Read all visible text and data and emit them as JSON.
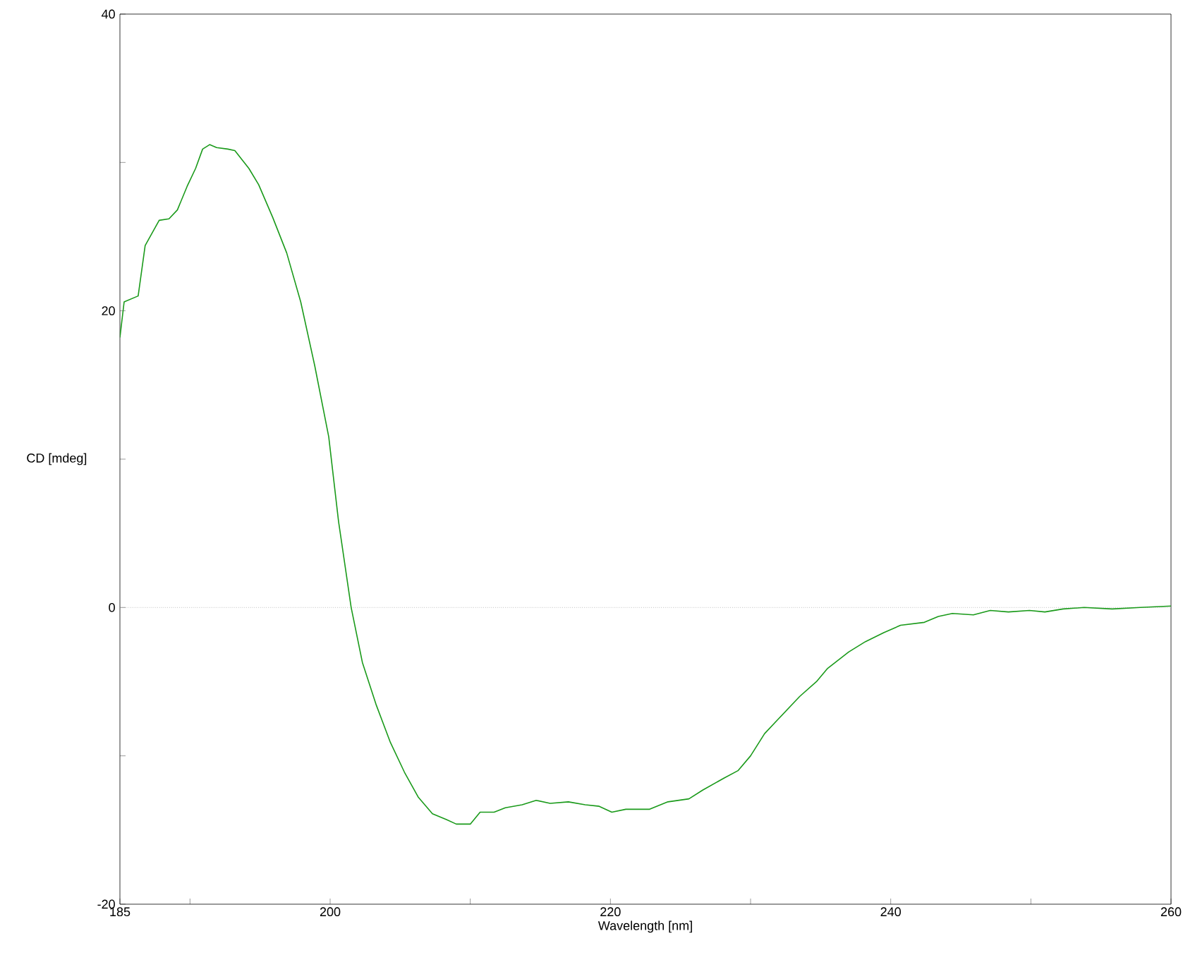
{
  "chart_data": {
    "type": "line",
    "xlabel": "Wavelength [nm]",
    "ylabel": "CD [mdeg]",
    "xlim": [
      185,
      260
    ],
    "ylim": [
      -20,
      40
    ],
    "xticks": [
      185,
      {
        "value": 190,
        "label": null
      },
      200,
      {
        "value": 210,
        "label": null
      },
      220,
      {
        "value": 230,
        "label": null
      },
      240,
      {
        "value": 250,
        "label": null
      },
      260
    ],
    "yticks": [
      -20,
      {
        "value": -10,
        "label": null
      },
      0,
      {
        "value": 10,
        "label": null
      },
      20,
      {
        "value": 30,
        "label": null
      },
      40
    ],
    "grid": false,
    "marker": "none",
    "line_style": "solid",
    "ref_lines": [
      {
        "axis": "y",
        "value": 0,
        "color": "#a0a0a0",
        "line_style": "dotted"
      }
    ],
    "series": [
      {
        "color": "#1a9a1a",
        "x": [
          185,
          185.3,
          186.3,
          186.8,
          187.8,
          188.5,
          189.1,
          189.8,
          190.4,
          190.9,
          191.4,
          191.9,
          192.7,
          193.2,
          194.2,
          194.9,
          195.9,
          196.9,
          197.9,
          198.9,
          199.9,
          200.6,
          201.5,
          202.3,
          203.3,
          204.3,
          205.3,
          206.3,
          207.3,
          208.3,
          209.0,
          210.0,
          210.7,
          211.7,
          212.5,
          213.7,
          214.7,
          215.7,
          217.0,
          218.2,
          219.2,
          220.1,
          221.1,
          222.8,
          224.1,
          225.6,
          226.6,
          228.1,
          229.1,
          230.0,
          231.0,
          232.0,
          233.5,
          234.7,
          235.5,
          237.0,
          238.2,
          239.5,
          240.7,
          242.4,
          243.4,
          244.4,
          245.9,
          247.1,
          248.4,
          249.9,
          251.0,
          252.3,
          253.8,
          255.8,
          257.8,
          260
        ],
        "values": [
          18.2,
          20.6,
          21.0,
          24.4,
          26.1,
          26.2,
          26.8,
          28.4,
          29.6,
          30.9,
          31.2,
          31.0,
          30.9,
          30.8,
          29.6,
          28.5,
          26.3,
          23.9,
          20.6,
          16.3,
          11.5,
          5.8,
          0,
          -3.7,
          -6.6,
          -9.1,
          -11.1,
          -12.8,
          -13.9,
          -14.3,
          -14.6,
          -14.6,
          -13.8,
          -13.8,
          -13.5,
          -13.3,
          -13.0,
          -13.2,
          -13.1,
          -13.3,
          -13.4,
          -13.8,
          -13.6,
          -13.6,
          -13.1,
          -12.9,
          -12.3,
          -11.5,
          -11.0,
          -10.0,
          -8.5,
          -7.5,
          -6.0,
          -5.0,
          -4.1,
          -3.0,
          -2.3,
          -1.7,
          -1.2,
          -1.0,
          -0.6,
          -0.4,
          -0.5,
          -0.2,
          -0.3,
          -0.2,
          -0.3,
          -0.1,
          0,
          -0.1,
          0,
          0.1
        ]
      }
    ]
  }
}
